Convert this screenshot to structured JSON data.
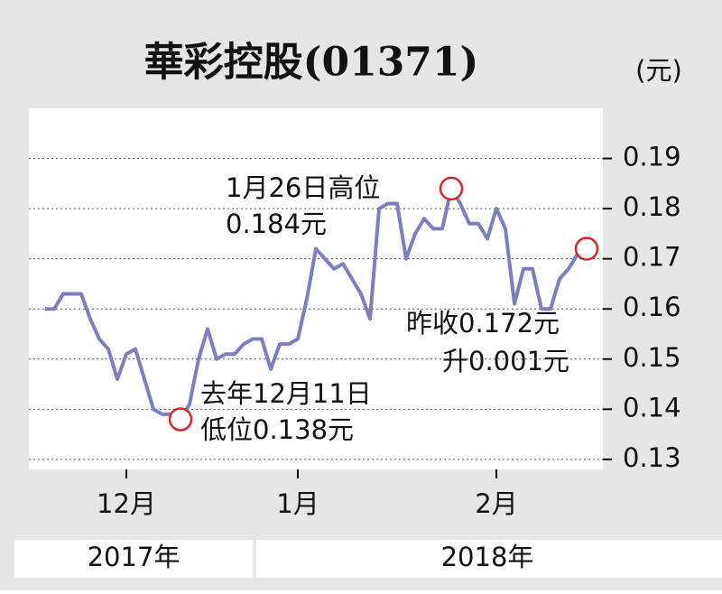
{
  "chart_data": {
    "type": "line",
    "title": "華彩控股(01371)",
    "unit": "(元)",
    "categories": [
      null,
      null,
      null,
      null,
      null,
      null,
      null,
      null,
      null,
      "12月",
      null,
      null,
      null,
      null,
      null,
      null,
      null,
      null,
      null,
      null,
      null,
      null,
      null,
      null,
      null,
      null,
      null,
      null,
      "1月",
      null,
      null,
      null,
      null,
      null,
      null,
      null,
      null,
      null,
      null,
      null,
      null,
      null,
      null,
      null,
      null,
      null,
      null,
      null,
      null,
      null,
      "2月",
      null,
      null,
      null,
      null,
      null,
      null,
      null,
      null,
      null,
      null
    ],
    "values": [
      0.16,
      0.16,
      0.163,
      0.163,
      0.163,
      0.158,
      0.154,
      0.152,
      0.146,
      0.151,
      0.152,
      0.146,
      0.14,
      0.139,
      0.139,
      0.138,
      0.141,
      0.15,
      0.156,
      0.15,
      0.151,
      0.151,
      0.153,
      0.154,
      0.154,
      0.148,
      0.153,
      0.153,
      0.154,
      0.162,
      0.172,
      0.17,
      0.168,
      0.169,
      0.166,
      0.163,
      0.158,
      0.18,
      0.181,
      0.181,
      0.17,
      0.175,
      0.178,
      0.176,
      0.176,
      0.184,
      0.181,
      0.177,
      0.177,
      0.174,
      0.18,
      0.176,
      0.161,
      0.168,
      0.168,
      0.16,
      0.16,
      0.166,
      0.168,
      0.171,
      0.172
    ],
    "color": "#7b7fc0",
    "highlight_color": "#d7262a",
    "ylim": [
      0.128,
      0.2
    ],
    "yticks": [
      0.13,
      0.14,
      0.15,
      0.16,
      0.17,
      0.18,
      0.19
    ],
    "grid": true,
    "years": [
      "2017年",
      "2018年"
    ],
    "annotations": [
      [
        "1月26日高位",
        "0.184元"
      ],
      [
        "去年12月11日",
        "低位0.138元"
      ],
      [
        "昨收0.172元",
        "升0.001元"
      ]
    ]
  }
}
